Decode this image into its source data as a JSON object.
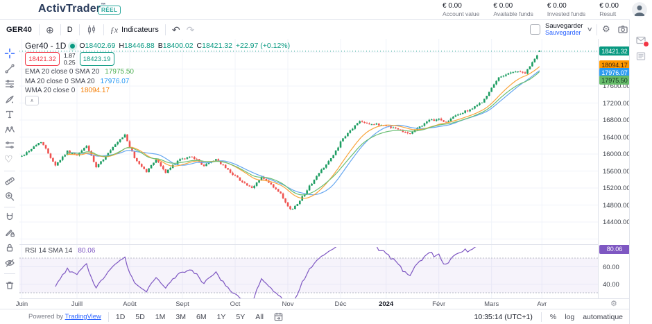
{
  "header": {
    "logo": "ActivTrader",
    "tm": "™",
    "account_type_badge": "RÉEL",
    "stats": [
      {
        "value": "€ 0.00",
        "label": "Account value"
      },
      {
        "value": "€ 0.00",
        "label": "Available funds"
      },
      {
        "value": "€ 0.00",
        "label": "Invested funds"
      },
      {
        "value": "€ 0.00",
        "label": "Result"
      }
    ]
  },
  "toolbar": {
    "symbol": "GER40",
    "compare_glyph": "⊕",
    "interval": "D",
    "fx_glyph": "ƒx",
    "indicators_label": "Indicateurs",
    "undo_glyph": "↶",
    "redo_glyph": "↷",
    "save_label": "Sauvegarder",
    "save_sublabel": "Sauvegarder",
    "chevron": "∨",
    "gear_glyph": "⚙"
  },
  "left_tools": [
    "crosshair",
    "trend-line",
    "parallel-lines",
    "brush",
    "text",
    "xabcd-pattern",
    "fib-lines",
    "heart-emoji",
    "ruler",
    "zoom-in",
    "magnet",
    "draw-lock",
    "lock",
    "eye-hide",
    "trash"
  ],
  "legend": {
    "title": "Ger40 - 1D",
    "o_label": "O",
    "o": "18402.69",
    "h_label": "H",
    "h": "18446.88",
    "b_label": "B",
    "b": "18400.02",
    "c_label": "C",
    "c": "18421.32",
    "change": "+22.97 (+0.12%)",
    "sell": "18421.32",
    "spread_top": "1.87",
    "spread_bottom": "0.25",
    "buy": "18423.19",
    "indicators": [
      {
        "name": "EMA 20 close 0 SMA 20",
        "value": "17975.50",
        "color": "#4caf50"
      },
      {
        "name": "MA 20 close 0 SMA 20",
        "value": "17976.07",
        "color": "#2196f3"
      },
      {
        "name": "WMA 20 close 0",
        "value": "18094.17",
        "color": "#f57c00"
      }
    ],
    "collapse_glyph": "∧",
    "rsi_name": "RSI 14 SMA 14",
    "rsi_value": "80.06"
  },
  "price_axis": {
    "ticks": [
      17600,
      17200,
      16800,
      16400,
      16000,
      15600,
      15200,
      14800,
      14400
    ],
    "badges": [
      {
        "text": "18421.32",
        "bg": "#089981",
        "fg": "#ffffff",
        "y": 17.7
      },
      {
        "text": "18094.17",
        "bg": "#ff9800",
        "fg": "#40250a",
        "y": 37.5
      },
      {
        "text": "17976.07",
        "bg": "#2d9bf0",
        "fg": "#ffffff",
        "y": 48.5
      },
      {
        "text": "17975.50",
        "bg": "#66bb6a",
        "fg": "#10331c",
        "y": 59.5
      }
    ],
    "rsi_ticks": [
      60,
      40
    ],
    "rsi_badge": {
      "text": "80.06",
      "bg": "#7e57c2",
      "fg": "#ffffff"
    }
  },
  "time_axis": {
    "months": [
      {
        "label": "Juin",
        "day": 0
      },
      {
        "label": "Juill",
        "day": 23
      },
      {
        "label": "Août",
        "day": 45
      },
      {
        "label": "Sept",
        "day": 67
      },
      {
        "label": "Oct",
        "day": 89
      },
      {
        "label": "Nov",
        "day": 111
      },
      {
        "label": "Déc",
        "day": 133
      },
      {
        "label": "2024",
        "day": 152,
        "bold": true
      },
      {
        "label": "Févr",
        "day": 174
      },
      {
        "label": "Mars",
        "day": 196
      },
      {
        "label": "Avr",
        "day": 217
      }
    ],
    "gear_glyph": "⚙",
    "collapse_glyph": "‹"
  },
  "bottom_bar": {
    "powered": "Powered by",
    "tradingview": "TradingView",
    "ranges": [
      "1D",
      "5D",
      "1M",
      "3M",
      "6M",
      "1Y",
      "5Y",
      "All"
    ],
    "clock": "10:35:14 (UTC+1)",
    "percent": "%",
    "log": "log",
    "auto": "automatique"
  },
  "chart_data": {
    "type": "candlestick",
    "symbol": "Ger40",
    "interval": "1D",
    "title": "Ger40 - 1D",
    "current": {
      "open": 18402.69,
      "high": 18446.88,
      "low": 18400.02,
      "close": 18421.32,
      "change": "+22.97",
      "change_pct": "+0.12%",
      "bid": 18421.32,
      "ask": 18423.19
    },
    "y_axis": {
      "ticks": [
        17600,
        17200,
        16800,
        16400,
        16000,
        15600,
        15200,
        14800,
        14400
      ],
      "tick_step": 400
    },
    "days": 217,
    "price_anchors": [
      [
        0,
        15950
      ],
      [
        8,
        16300
      ],
      [
        14,
        15740
      ],
      [
        19,
        16060
      ],
      [
        23,
        15960
      ],
      [
        27,
        16200
      ],
      [
        31,
        15680
      ],
      [
        38,
        16150
      ],
      [
        43,
        16450
      ],
      [
        47,
        15900
      ],
      [
        52,
        15580
      ],
      [
        56,
        15880
      ],
      [
        60,
        15560
      ],
      [
        65,
        15840
      ],
      [
        71,
        15950
      ],
      [
        76,
        15720
      ],
      [
        81,
        15880
      ],
      [
        86,
        15620
      ],
      [
        91,
        15390
      ],
      [
        96,
        15180
      ],
      [
        100,
        15460
      ],
      [
        104,
        15270
      ],
      [
        108,
        15050
      ],
      [
        111,
        14750
      ],
      [
        113,
        14700
      ],
      [
        117,
        14990
      ],
      [
        121,
        15320
      ],
      [
        126,
        15700
      ],
      [
        130,
        15960
      ],
      [
        133,
        16280
      ],
      [
        137,
        16550
      ],
      [
        141,
        16780
      ],
      [
        146,
        16700
      ],
      [
        151,
        16680
      ],
      [
        156,
        16600
      ],
      [
        162,
        16480
      ],
      [
        166,
        16650
      ],
      [
        170,
        16780
      ],
      [
        174,
        16820
      ],
      [
        177,
        16750
      ],
      [
        181,
        16900
      ],
      [
        185,
        17000
      ],
      [
        189,
        17100
      ],
      [
        193,
        17280
      ],
      [
        196,
        17550
      ],
      [
        199,
        17800
      ],
      [
        203,
        17900
      ],
      [
        207,
        17950
      ],
      [
        210,
        17900
      ],
      [
        213,
        18150
      ],
      [
        216,
        18421.32
      ]
    ],
    "overlays": [
      {
        "name": "EMA 20",
        "last": 17975.5,
        "color": "#6abf74"
      },
      {
        "name": "SMA 20",
        "last": 17976.07,
        "color": "#64a6f0"
      },
      {
        "name": "WMA 20",
        "last": 18094.17,
        "color": "#f9a43a"
      }
    ],
    "rsi": {
      "name": "RSI 14 SMA 14",
      "period": 14,
      "last": 80.06,
      "ticks": [
        60,
        40
      ],
      "band": [
        30,
        70
      ]
    },
    "colors": {
      "up": "#1d9d62",
      "down": "#ef5350",
      "grid": "#f0f3fa",
      "rsi": "#7e57c2",
      "rsi_band": "rgba(126,87,194,0.07)",
      "price_line": "#089981"
    }
  }
}
